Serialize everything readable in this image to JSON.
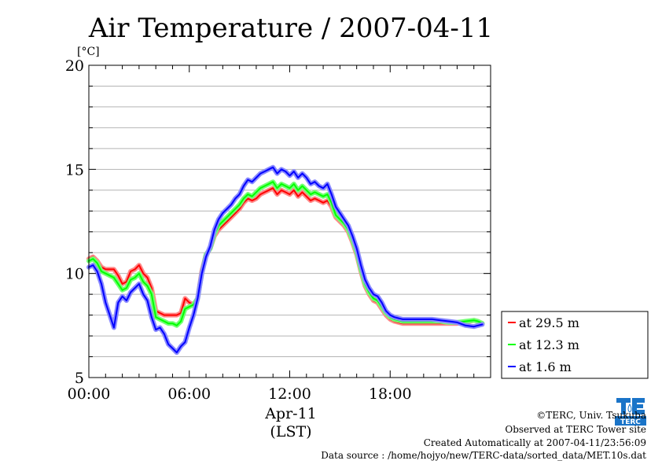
{
  "chart_data": {
    "type": "line",
    "title": "Air Temperature / 2007-04-11",
    "ylabel": "[°C]",
    "xlabel": [
      "Apr-11",
      "(LST)"
    ],
    "xlim": [
      0,
      24
    ],
    "ylim": [
      5,
      20
    ],
    "xticks": [
      0,
      6,
      12,
      18
    ],
    "xtick_labels": [
      "00:00",
      "06:00",
      "12:00",
      "18:00"
    ],
    "yticks": [
      5,
      10,
      15,
      20
    ],
    "ytick_labels": [
      "5",
      "10",
      "15",
      "20"
    ],
    "grid": "horizontal",
    "legend_position": "right",
    "series": [
      {
        "name": "at 29.5 m",
        "color": "#ff0000",
        "points": [
          [
            0.0,
            10.7
          ],
          [
            0.25,
            10.8
          ],
          [
            0.5,
            10.6
          ],
          [
            0.75,
            10.3
          ],
          [
            1.0,
            10.2
          ],
          [
            1.25,
            10.2
          ],
          [
            1.5,
            10.2
          ],
          [
            1.75,
            9.9
          ],
          [
            2.0,
            9.5
          ],
          [
            2.25,
            9.6
          ],
          [
            2.5,
            10.1
          ],
          [
            2.75,
            10.2
          ],
          [
            3.0,
            10.4
          ],
          [
            3.25,
            10.0
          ],
          [
            3.5,
            9.8
          ],
          [
            3.75,
            9.3
          ],
          [
            4.0,
            8.2
          ],
          [
            4.25,
            8.1
          ],
          [
            4.5,
            8.0
          ],
          [
            4.75,
            8.0
          ],
          [
            5.0,
            8.0
          ],
          [
            5.25,
            8.0
          ],
          [
            5.5,
            8.1
          ],
          [
            5.75,
            8.8
          ],
          [
            6.0,
            8.6
          ],
          [
            6.25,
            8.5
          ],
          [
            6.5,
            8.8
          ],
          [
            6.75,
            10.1
          ],
          [
            7.0,
            10.9
          ],
          [
            7.25,
            11.2
          ],
          [
            7.5,
            11.8
          ],
          [
            7.75,
            12.1
          ],
          [
            8.0,
            12.3
          ],
          [
            8.25,
            12.5
          ],
          [
            8.5,
            12.7
          ],
          [
            8.75,
            12.9
          ],
          [
            9.0,
            13.1
          ],
          [
            9.25,
            13.4
          ],
          [
            9.5,
            13.6
          ],
          [
            9.75,
            13.5
          ],
          [
            10.0,
            13.6
          ],
          [
            10.25,
            13.8
          ],
          [
            10.5,
            13.9
          ],
          [
            10.75,
            14.0
          ],
          [
            11.0,
            14.1
          ],
          [
            11.25,
            13.8
          ],
          [
            11.5,
            14.0
          ],
          [
            11.75,
            13.9
          ],
          [
            12.0,
            13.8
          ],
          [
            12.25,
            14.0
          ],
          [
            12.5,
            13.7
          ],
          [
            12.75,
            13.9
          ],
          [
            13.0,
            13.7
          ],
          [
            13.25,
            13.5
          ],
          [
            13.5,
            13.6
          ],
          [
            13.75,
            13.5
          ],
          [
            14.0,
            13.4
          ],
          [
            14.25,
            13.5
          ],
          [
            14.5,
            13.2
          ],
          [
            14.75,
            12.7
          ],
          [
            15.0,
            12.5
          ],
          [
            15.25,
            12.3
          ],
          [
            15.5,
            12.0
          ],
          [
            15.75,
            11.5
          ],
          [
            16.0,
            10.9
          ],
          [
            16.25,
            10.1
          ],
          [
            16.5,
            9.4
          ],
          [
            16.75,
            9.0
          ],
          [
            17.0,
            8.7
          ],
          [
            17.25,
            8.6
          ],
          [
            17.5,
            8.3
          ],
          [
            17.75,
            8.0
          ],
          [
            18.0,
            7.8
          ],
          [
            18.25,
            7.7
          ],
          [
            18.5,
            7.65
          ],
          [
            18.75,
            7.6
          ],
          [
            19.0,
            7.6
          ],
          [
            19.5,
            7.6
          ],
          [
            20.0,
            7.6
          ],
          [
            20.5,
            7.6
          ],
          [
            21.0,
            7.6
          ],
          [
            21.5,
            7.6
          ],
          [
            22.0,
            7.6
          ],
          [
            22.5,
            7.65
          ],
          [
            23.0,
            7.75
          ],
          [
            23.25,
            7.7
          ],
          [
            23.5,
            7.6
          ]
        ]
      },
      {
        "name": "at 12.3 m",
        "color": "#00ff00",
        "points": [
          [
            0.0,
            10.6
          ],
          [
            0.25,
            10.7
          ],
          [
            0.5,
            10.5
          ],
          [
            0.75,
            10.1
          ],
          [
            1.0,
            10.0
          ],
          [
            1.25,
            9.9
          ],
          [
            1.5,
            9.8
          ],
          [
            1.75,
            9.5
          ],
          [
            2.0,
            9.2
          ],
          [
            2.25,
            9.3
          ],
          [
            2.5,
            9.7
          ],
          [
            2.75,
            9.8
          ],
          [
            3.0,
            10.0
          ],
          [
            3.25,
            9.6
          ],
          [
            3.5,
            9.4
          ],
          [
            3.75,
            9.0
          ],
          [
            4.0,
            7.9
          ],
          [
            4.25,
            7.8
          ],
          [
            4.5,
            7.7
          ],
          [
            4.75,
            7.6
          ],
          [
            5.0,
            7.6
          ],
          [
            5.25,
            7.5
          ],
          [
            5.5,
            7.7
          ],
          [
            5.75,
            8.3
          ],
          [
            6.0,
            8.4
          ],
          [
            6.25,
            8.5
          ],
          [
            6.5,
            8.8
          ],
          [
            6.75,
            10.0
          ],
          [
            7.0,
            10.9
          ],
          [
            7.25,
            11.2
          ],
          [
            7.5,
            11.9
          ],
          [
            7.75,
            12.3
          ],
          [
            8.0,
            12.5
          ],
          [
            8.25,
            12.7
          ],
          [
            8.5,
            12.9
          ],
          [
            8.75,
            13.1
          ],
          [
            9.0,
            13.3
          ],
          [
            9.25,
            13.6
          ],
          [
            9.5,
            13.8
          ],
          [
            9.75,
            13.7
          ],
          [
            10.0,
            13.9
          ],
          [
            10.25,
            14.1
          ],
          [
            10.5,
            14.2
          ],
          [
            10.75,
            14.3
          ],
          [
            11.0,
            14.4
          ],
          [
            11.25,
            14.1
          ],
          [
            11.5,
            14.3
          ],
          [
            11.75,
            14.2
          ],
          [
            12.0,
            14.1
          ],
          [
            12.25,
            14.3
          ],
          [
            12.5,
            14.0
          ],
          [
            12.75,
            14.2
          ],
          [
            13.0,
            14.0
          ],
          [
            13.25,
            13.8
          ],
          [
            13.5,
            13.9
          ],
          [
            13.75,
            13.8
          ],
          [
            14.0,
            13.7
          ],
          [
            14.25,
            13.8
          ],
          [
            14.5,
            13.4
          ],
          [
            14.75,
            12.8
          ],
          [
            15.0,
            12.6
          ],
          [
            15.25,
            12.4
          ],
          [
            15.5,
            12.1
          ],
          [
            15.75,
            11.6
          ],
          [
            16.0,
            11.0
          ],
          [
            16.25,
            10.2
          ],
          [
            16.5,
            9.5
          ],
          [
            16.75,
            9.1
          ],
          [
            17.0,
            8.8
          ],
          [
            17.25,
            8.7
          ],
          [
            17.5,
            8.4
          ],
          [
            17.75,
            8.1
          ],
          [
            18.0,
            7.9
          ],
          [
            18.25,
            7.8
          ],
          [
            18.5,
            7.75
          ],
          [
            18.75,
            7.7
          ],
          [
            19.0,
            7.7
          ],
          [
            19.5,
            7.7
          ],
          [
            20.0,
            7.7
          ],
          [
            20.5,
            7.7
          ],
          [
            21.0,
            7.7
          ],
          [
            21.5,
            7.65
          ],
          [
            22.0,
            7.65
          ],
          [
            22.5,
            7.7
          ],
          [
            23.0,
            7.75
          ],
          [
            23.25,
            7.7
          ],
          [
            23.5,
            7.6
          ]
        ]
      },
      {
        "name": "at 1.6 m",
        "color": "#0000ff",
        "points": [
          [
            0.0,
            10.3
          ],
          [
            0.25,
            10.4
          ],
          [
            0.5,
            10.1
          ],
          [
            0.75,
            9.5
          ],
          [
            1.0,
            8.6
          ],
          [
            1.25,
            8.0
          ],
          [
            1.5,
            7.4
          ],
          [
            1.75,
            8.6
          ],
          [
            2.0,
            8.9
          ],
          [
            2.25,
            8.7
          ],
          [
            2.5,
            9.1
          ],
          [
            2.75,
            9.3
          ],
          [
            3.0,
            9.5
          ],
          [
            3.25,
            9.0
          ],
          [
            3.5,
            8.7
          ],
          [
            3.75,
            7.9
          ],
          [
            4.0,
            7.3
          ],
          [
            4.25,
            7.4
          ],
          [
            4.5,
            7.1
          ],
          [
            4.75,
            6.6
          ],
          [
            5.0,
            6.4
          ],
          [
            5.25,
            6.2
          ],
          [
            5.5,
            6.5
          ],
          [
            5.75,
            6.7
          ],
          [
            6.0,
            7.4
          ],
          [
            6.25,
            8.0
          ],
          [
            6.5,
            8.8
          ],
          [
            6.75,
            10.0
          ],
          [
            7.0,
            10.8
          ],
          [
            7.25,
            11.3
          ],
          [
            7.5,
            12.1
          ],
          [
            7.75,
            12.6
          ],
          [
            8.0,
            12.9
          ],
          [
            8.25,
            13.1
          ],
          [
            8.5,
            13.3
          ],
          [
            8.75,
            13.6
          ],
          [
            9.0,
            13.8
          ],
          [
            9.25,
            14.2
          ],
          [
            9.5,
            14.5
          ],
          [
            9.75,
            14.4
          ],
          [
            10.0,
            14.6
          ],
          [
            10.25,
            14.8
          ],
          [
            10.5,
            14.9
          ],
          [
            10.75,
            15.0
          ],
          [
            11.0,
            15.1
          ],
          [
            11.25,
            14.8
          ],
          [
            11.5,
            15.0
          ],
          [
            11.75,
            14.9
          ],
          [
            12.0,
            14.7
          ],
          [
            12.25,
            14.9
          ],
          [
            12.5,
            14.6
          ],
          [
            12.75,
            14.8
          ],
          [
            13.0,
            14.6
          ],
          [
            13.25,
            14.3
          ],
          [
            13.5,
            14.4
          ],
          [
            13.75,
            14.2
          ],
          [
            14.0,
            14.1
          ],
          [
            14.25,
            14.3
          ],
          [
            14.5,
            13.8
          ],
          [
            14.75,
            13.2
          ],
          [
            15.0,
            12.9
          ],
          [
            15.25,
            12.6
          ],
          [
            15.5,
            12.3
          ],
          [
            15.75,
            11.8
          ],
          [
            16.0,
            11.2
          ],
          [
            16.25,
            10.4
          ],
          [
            16.5,
            9.7
          ],
          [
            16.75,
            9.3
          ],
          [
            17.0,
            9.0
          ],
          [
            17.25,
            8.9
          ],
          [
            17.5,
            8.6
          ],
          [
            17.75,
            8.2
          ],
          [
            18.0,
            8.0
          ],
          [
            18.25,
            7.9
          ],
          [
            18.5,
            7.85
          ],
          [
            18.75,
            7.8
          ],
          [
            19.0,
            7.8
          ],
          [
            19.5,
            7.8
          ],
          [
            20.0,
            7.8
          ],
          [
            20.5,
            7.8
          ],
          [
            21.0,
            7.75
          ],
          [
            21.5,
            7.7
          ],
          [
            22.0,
            7.65
          ],
          [
            22.5,
            7.5
          ],
          [
            23.0,
            7.45
          ],
          [
            23.25,
            7.5
          ],
          [
            23.5,
            7.55
          ]
        ]
      }
    ]
  },
  "credits": {
    "org": "©TERC, Univ. Tsukuba",
    "site": "Observed at TERC Tower site",
    "created": "Created Automatically at 2007-04-11/23:56:09",
    "source": "Data source : /home/hojyo/new/TERC-data/sorted_data/MET.10s.dat"
  },
  "logo": {
    "text": "TERC",
    "color": "#1a74c8",
    "icon": "terc-logo-icon"
  }
}
